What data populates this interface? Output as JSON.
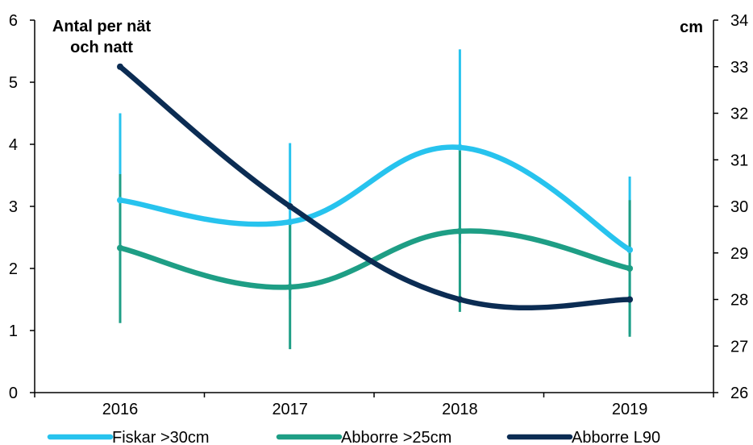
{
  "chart_data": {
    "type": "line",
    "categories": [
      "2016",
      "2017",
      "2018",
      "2019"
    ],
    "y_left": {
      "label_lines": [
        "Antal per nät",
        "och natt"
      ],
      "min": 0,
      "max": 6,
      "ticks": [
        "0",
        "1",
        "2",
        "3",
        "4",
        "5",
        "6"
      ]
    },
    "y_right": {
      "label": "cm",
      "min": 26,
      "max": 34,
      "ticks": [
        "26",
        "27",
        "28",
        "29",
        "30",
        "31",
        "32",
        "33",
        "34"
      ]
    },
    "grid": false,
    "legend_position": "bottom",
    "series": [
      {
        "name": "Fiskar >30cm",
        "axis": "left",
        "color": "#27C3EE",
        "values": [
          3.1,
          2.75,
          3.95,
          2.3
        ],
        "error_low": [
          1.7,
          1.5,
          2.4,
          0.95
        ],
        "error_high": [
          4.5,
          4.02,
          5.53,
          3.48
        ]
      },
      {
        "name": "Abborre >25cm",
        "axis": "left",
        "color": "#1E9E85",
        "values": [
          2.33,
          1.7,
          2.6,
          2.0
        ],
        "error_low": [
          1.12,
          0.7,
          1.3,
          0.9
        ],
        "error_high": [
          3.52,
          2.71,
          3.9,
          3.1
        ]
      },
      {
        "name": "Abborre L90",
        "axis": "right",
        "color": "#0B2C53",
        "values": [
          33.0,
          30.0,
          28.0,
          28.0
        ],
        "error_low": null,
        "error_high": null
      }
    ]
  }
}
